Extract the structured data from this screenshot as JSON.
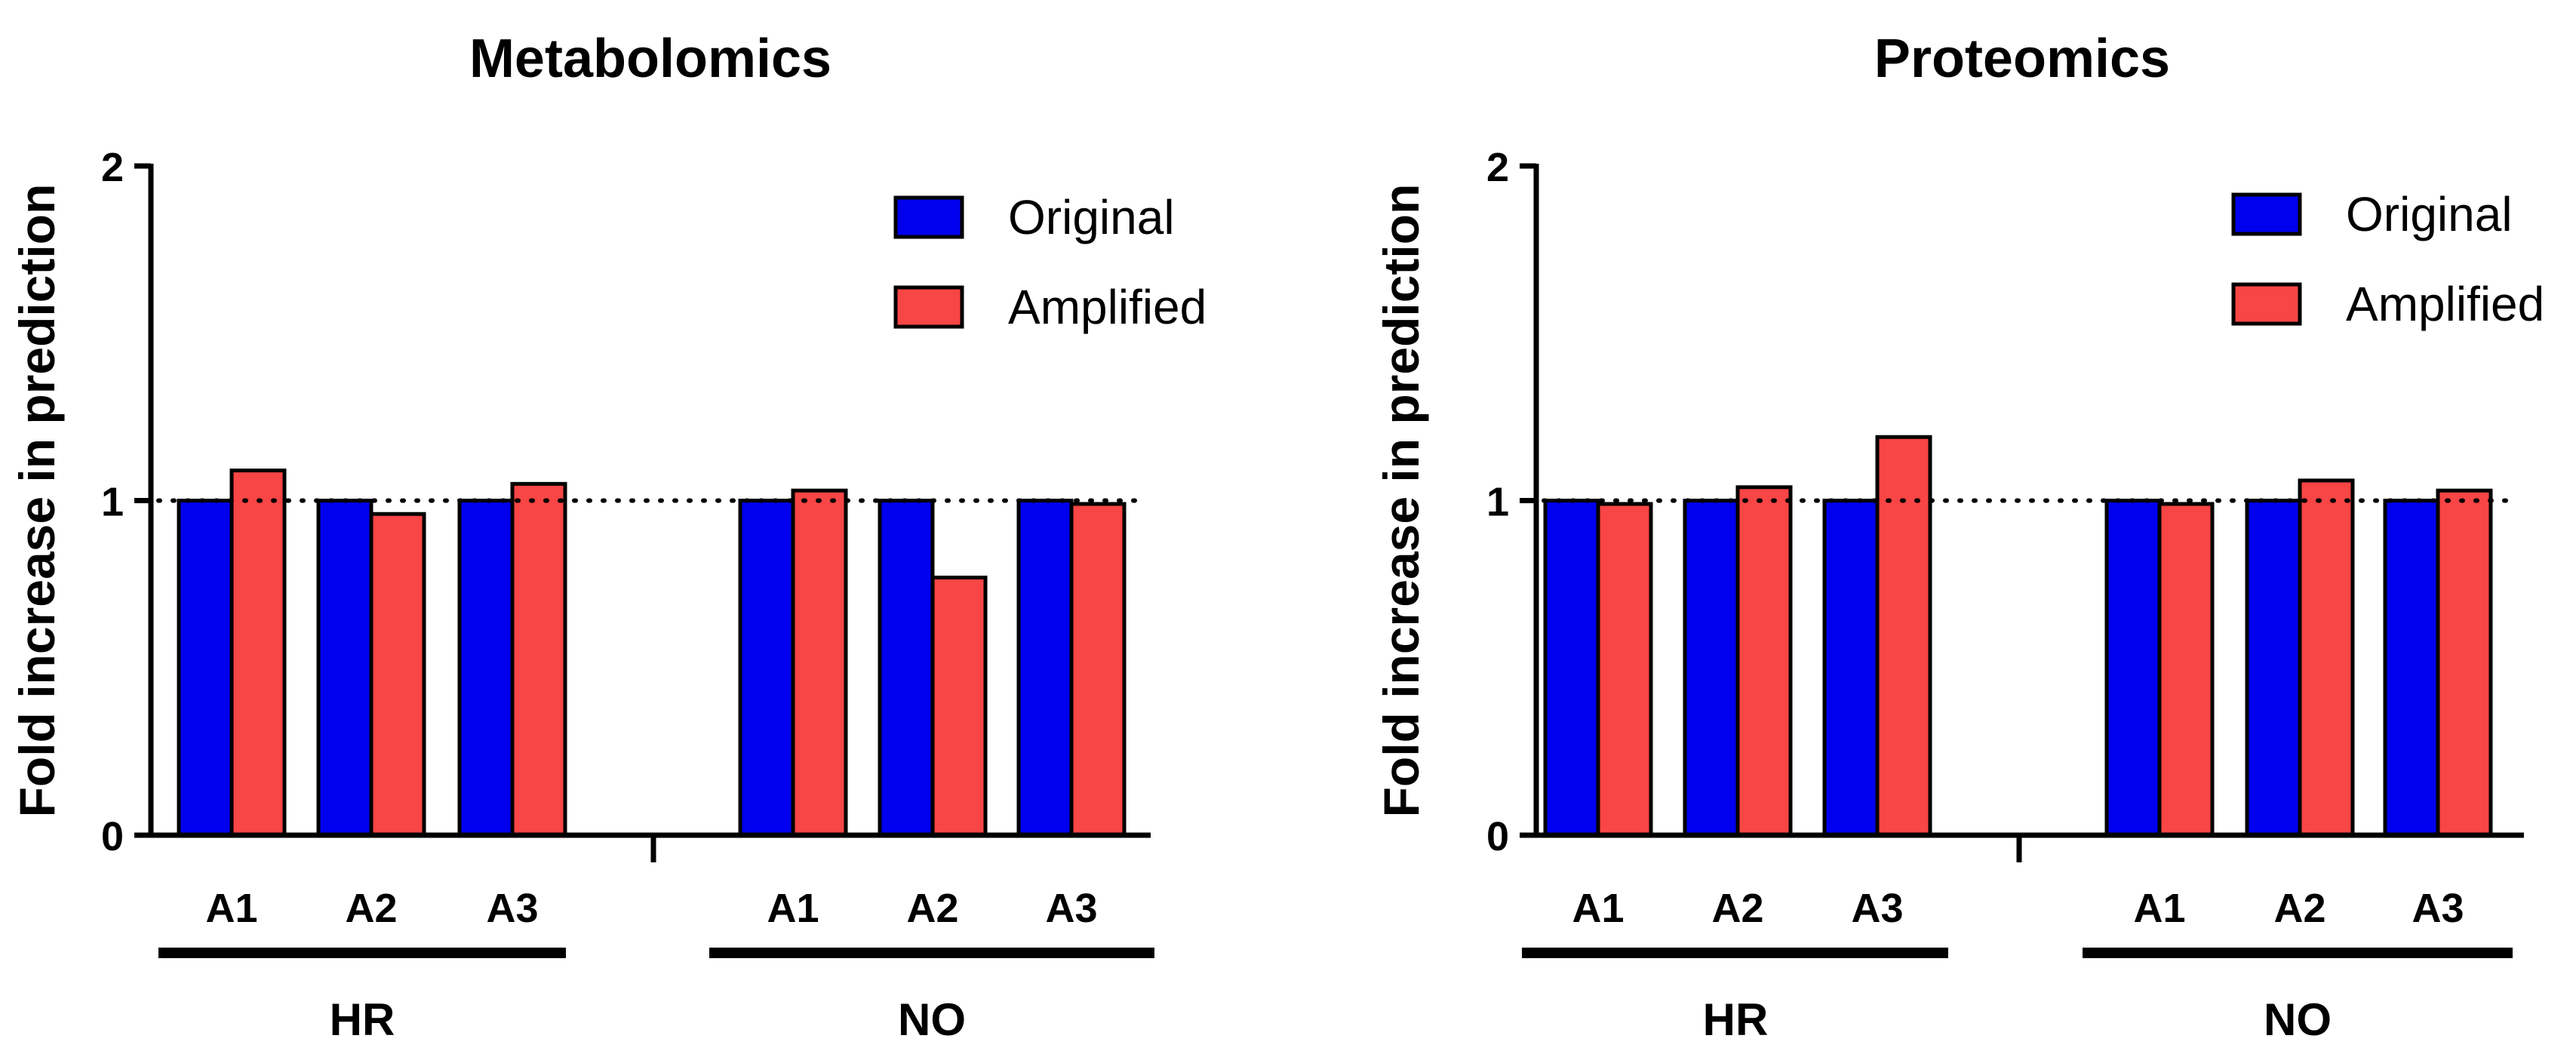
{
  "chart_data": [
    {
      "type": "bar",
      "title": "Metabolomics",
      "xlabel": "",
      "ylabel": "Fold increase in prediction",
      "ylim": [
        0,
        2
      ],
      "yticks": [
        "0",
        "1",
        "2"
      ],
      "reference_line": 1,
      "legend_position": "top-right",
      "groups": [
        "HR",
        "NO"
      ],
      "categories": [
        "A1",
        "A2",
        "A3",
        "A1",
        "A2",
        "A3"
      ],
      "series": [
        {
          "name": "Original",
          "color": "#0000ee",
          "values": [
            1.0,
            1.0,
            1.0,
            1.0,
            1.0,
            1.0
          ]
        },
        {
          "name": "Amplified",
          "color": "#f84545",
          "values": [
            1.09,
            0.96,
            1.05,
            1.03,
            0.77,
            0.99
          ]
        }
      ]
    },
    {
      "type": "bar",
      "title": "Proteomics",
      "xlabel": "",
      "ylabel": "Fold increase in prediction",
      "ylim": [
        0,
        2
      ],
      "yticks": [
        "0",
        "1",
        "2"
      ],
      "reference_line": 1,
      "legend_position": "top-right",
      "groups": [
        "HR",
        "NO"
      ],
      "categories": [
        "A1",
        "A2",
        "A3",
        "A1",
        "A2",
        "A3"
      ],
      "series": [
        {
          "name": "Original",
          "color": "#0000ee",
          "values": [
            1.0,
            1.0,
            1.0,
            1.0,
            1.0,
            1.0
          ]
        },
        {
          "name": "Amplified",
          "color": "#f84545",
          "values": [
            0.99,
            1.04,
            1.19,
            0.99,
            1.06,
            1.03
          ]
        }
      ]
    }
  ]
}
